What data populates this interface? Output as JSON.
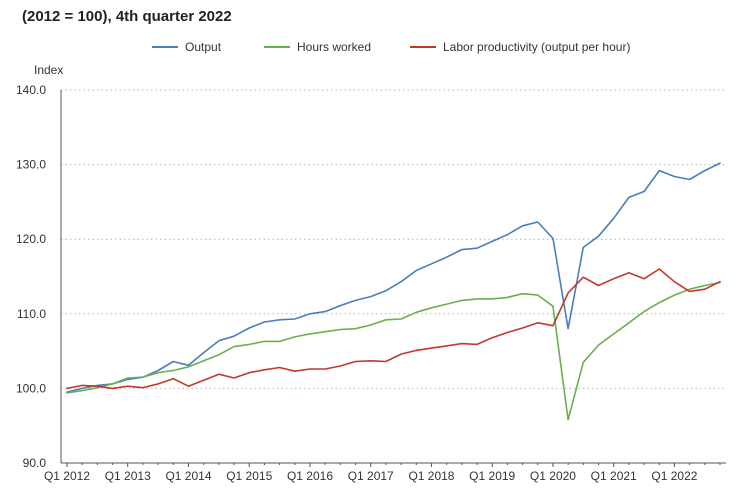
{
  "title": "(2012 = 100), 4th quarter 2022",
  "chart_data": {
    "type": "line",
    "title": "(2012 = 100), 4th quarter 2022",
    "ylabel": "Index",
    "xlabel": "",
    "ylim": [
      90,
      140
    ],
    "yticks": [
      "140.0",
      "130.0",
      "120.0",
      "110.0",
      "100.0",
      "90.0"
    ],
    "ytick_values": [
      140,
      130,
      120,
      110,
      100,
      90
    ],
    "xtick_labels": [
      "Q1 2012",
      "Q1 2013",
      "Q1 2014",
      "Q1 2015",
      "Q1 2016",
      "Q1 2017",
      "Q1 2018",
      "Q1 2019",
      "Q1 2020",
      "Q1 2021",
      "Q1 2022"
    ],
    "x": [
      "Q1 2012",
      "Q2 2012",
      "Q3 2012",
      "Q4 2012",
      "Q1 2013",
      "Q2 2013",
      "Q3 2013",
      "Q4 2013",
      "Q1 2014",
      "Q2 2014",
      "Q3 2014",
      "Q4 2014",
      "Q1 2015",
      "Q2 2015",
      "Q3 2015",
      "Q4 2015",
      "Q1 2016",
      "Q2 2016",
      "Q3 2016",
      "Q4 2016",
      "Q1 2017",
      "Q2 2017",
      "Q3 2017",
      "Q4 2017",
      "Q1 2018",
      "Q2 2018",
      "Q3 2018",
      "Q4 2018",
      "Q1 2019",
      "Q2 2019",
      "Q3 2019",
      "Q4 2019",
      "Q1 2020",
      "Q2 2020",
      "Q3 2020",
      "Q4 2020",
      "Q1 2021",
      "Q2 2021",
      "Q3 2021",
      "Q4 2021",
      "Q1 2022",
      "Q2 2022",
      "Q3 2022",
      "Q4 2022"
    ],
    "grid": true,
    "legend_position": "top",
    "series": [
      {
        "name": "Output",
        "color": "#4a7ebb",
        "values": [
          99.5,
          100.0,
          100.4,
          100.6,
          101.2,
          101.5,
          102.4,
          103.6,
          103.1,
          104.8,
          106.4,
          107.0,
          108.1,
          108.9,
          109.2,
          109.3,
          110.0,
          110.3,
          111.1,
          111.8,
          112.3,
          113.1,
          114.3,
          115.8,
          116.7,
          117.6,
          118.6,
          118.8,
          119.7,
          120.6,
          121.8,
          122.3,
          120.1,
          108.0,
          118.9,
          120.4,
          122.8,
          125.6,
          126.4,
          129.2,
          128.4,
          128.0,
          129.2,
          130.2
        ]
      },
      {
        "name": "Hours worked",
        "color": "#6aaf4f",
        "values": [
          99.4,
          99.7,
          100.1,
          100.6,
          101.4,
          101.5,
          102.1,
          102.4,
          102.9,
          103.7,
          104.5,
          105.6,
          105.9,
          106.3,
          106.3,
          106.9,
          107.3,
          107.6,
          107.9,
          108.0,
          108.5,
          109.2,
          109.3,
          110.2,
          110.8,
          111.3,
          111.8,
          112.0,
          112.0,
          112.2,
          112.7,
          112.5,
          111.0,
          95.8,
          103.5,
          105.8,
          107.3,
          108.8,
          110.3,
          111.5,
          112.5,
          113.3,
          113.8,
          114.2
        ]
      },
      {
        "name": "Labor productivity (output per hour)",
        "color": "#c0392b",
        "values": [
          100.0,
          100.4,
          100.3,
          100.0,
          100.3,
          100.1,
          100.6,
          101.3,
          100.3,
          101.1,
          101.9,
          101.4,
          102.1,
          102.5,
          102.8,
          102.3,
          102.6,
          102.6,
          103.0,
          103.6,
          103.7,
          103.6,
          104.6,
          105.1,
          105.4,
          105.7,
          106.0,
          105.9,
          106.8,
          107.5,
          108.1,
          108.8,
          108.4,
          112.8,
          114.9,
          113.8,
          114.7,
          115.5,
          114.7,
          116.0,
          114.3,
          113.0,
          113.3,
          114.3
        ]
      }
    ]
  }
}
